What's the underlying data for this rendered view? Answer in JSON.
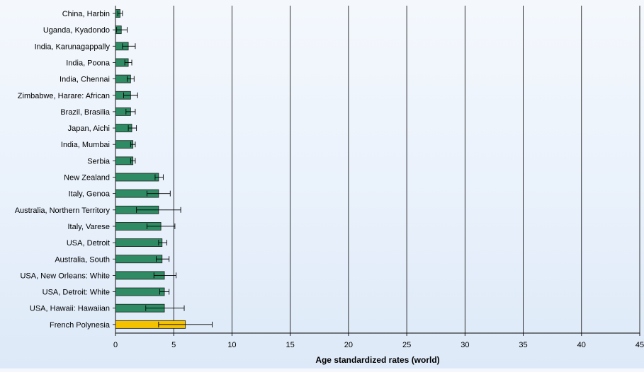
{
  "chart_data": {
    "type": "bar",
    "orientation": "horizontal",
    "title": "",
    "xlabel": "Age standardized rates (world)",
    "ylabel": "",
    "xlim": [
      0,
      45
    ],
    "xticks": [
      0,
      5,
      10,
      15,
      20,
      25,
      30,
      35,
      40,
      45
    ],
    "grid": "vertical lines",
    "legend": "none",
    "colors": {
      "default_bar": "#2e8b63",
      "highlight_bar": "#f5c200",
      "bar_stroke": "#1f1f1f",
      "grid": "#000000",
      "axis_text": "#000000"
    },
    "categories": [
      "China, Harbin",
      "Uganda, Kyadondo",
      "India, Karunagappally",
      "India, Poona",
      "India, Chennai",
      "Zimbabwe, Harare: African",
      "Brazil, Brasilia",
      "Japan, Aichi",
      "India, Mumbai",
      "Serbia",
      "New Zealand",
      "Italy, Genoa",
      "Australia, Northern Territory",
      "Italy, Varese",
      "USA, Detroit",
      "Australia, South",
      "USA, New Orleans: White",
      "USA, Detroit: White",
      "USA, Hawaii: Hawaiian",
      "French Polynesia"
    ],
    "values": [
      0.4,
      0.5,
      1.1,
      1.1,
      1.3,
      1.3,
      1.3,
      1.4,
      1.5,
      1.5,
      3.7,
      3.7,
      3.7,
      3.9,
      4.0,
      4.0,
      4.2,
      4.2,
      4.2,
      6.0
    ],
    "error_low": [
      0.2,
      0.1,
      0.6,
      0.8,
      1.0,
      0.7,
      0.9,
      1.1,
      1.3,
      1.3,
      3.4,
      2.7,
      1.8,
      2.7,
      3.7,
      3.5,
      3.3,
      3.8,
      2.6,
      3.7
    ],
    "error_high": [
      0.6,
      1.0,
      1.7,
      1.4,
      1.6,
      1.9,
      1.7,
      1.8,
      1.7,
      1.7,
      4.1,
      4.7,
      5.6,
      5.1,
      4.4,
      4.6,
      5.2,
      4.6,
      5.9,
      8.3
    ],
    "highlight_index": 19
  }
}
